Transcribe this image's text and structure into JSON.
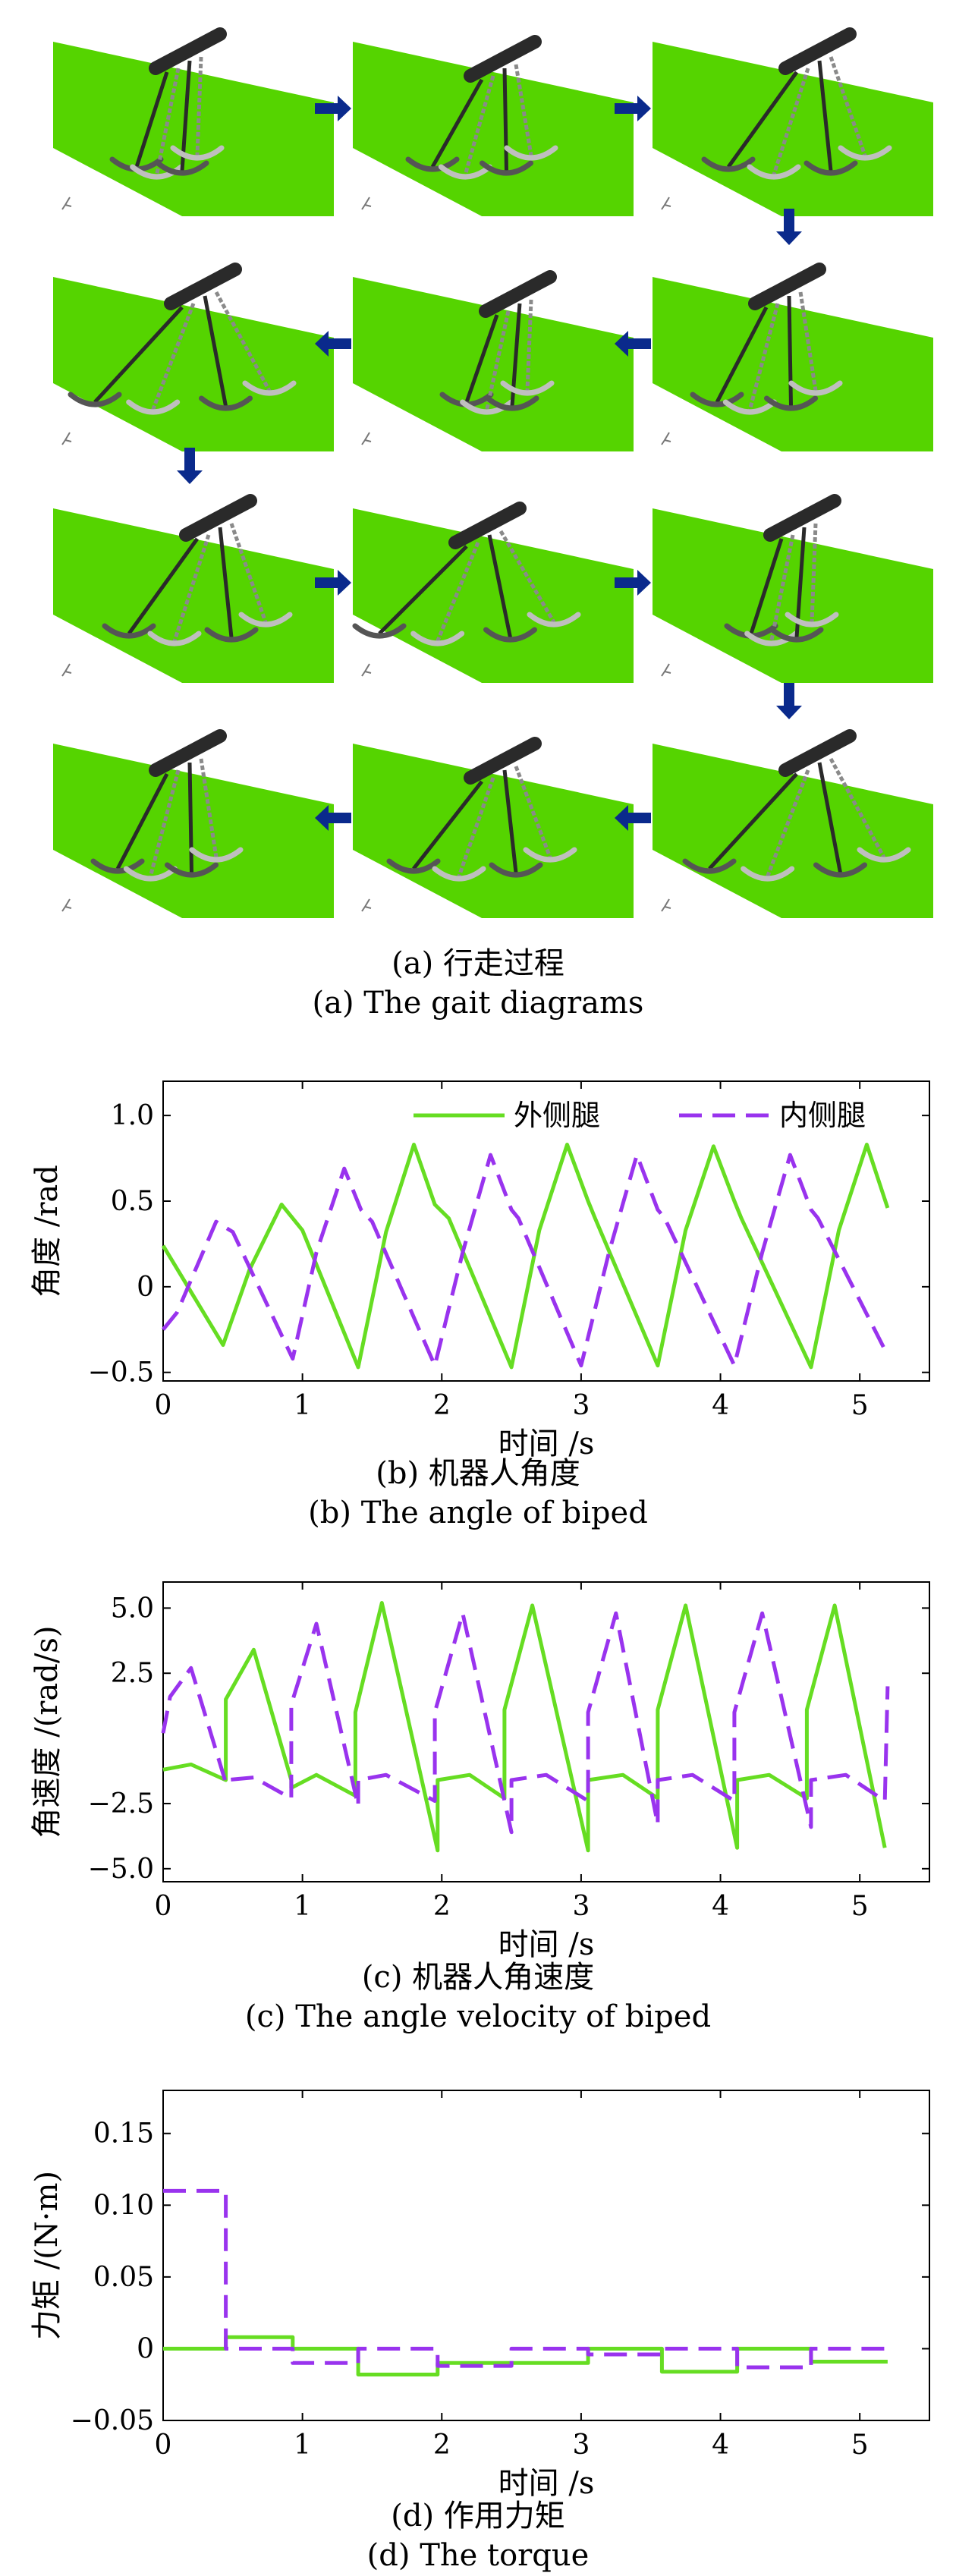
{
  "gait": {
    "caption_zh": "(a) 行走过程",
    "caption_en": "(a) The gait diagrams",
    "scene_color": "#55d400",
    "arrow_color": "#0a2a8c",
    "robot_color": "#2a2a2a"
  },
  "panels": {
    "b": {
      "caption_zh": "(b) 机器人角度",
      "caption_en": "(b) The angle of biped"
    },
    "c": {
      "caption_zh": "(c) 机器人角速度",
      "caption_en": "(c) The angle velocity of biped"
    },
    "d": {
      "caption_zh": "(d) 作用力矩",
      "caption_en": "(d) The torque"
    }
  },
  "chart_data": [
    {
      "type": "line",
      "id": "angle",
      "xlabel": "时间 /s",
      "ylabel": "角度 /rad",
      "xlim": [
        0,
        5.5
      ],
      "ylim": [
        -0.55,
        1.2
      ],
      "xticks": [
        0,
        1,
        2,
        3,
        4,
        5
      ],
      "xtick_labels": [
        "0",
        "1",
        "2",
        "3",
        "4",
        "5"
      ],
      "yticks": [
        -0.5,
        0,
        0.5,
        1.0
      ],
      "ytick_labels": [
        "−0.5",
        "0",
        "0.5",
        "1.0"
      ],
      "legend_position": "top-right",
      "grid": false,
      "series": [
        {
          "name": "外侧腿",
          "color": "#66dd22",
          "dash": "solid",
          "points": [
            [
              0,
              0.24
            ],
            [
              0.43,
              -0.34
            ],
            [
              0.62,
              0.1
            ],
            [
              0.85,
              0.48
            ],
            [
              1.0,
              0.33
            ],
            [
              1.4,
              -0.47
            ],
            [
              1.6,
              0.32
            ],
            [
              1.8,
              0.83
            ],
            [
              1.95,
              0.48
            ],
            [
              2.05,
              0.4
            ],
            [
              2.5,
              -0.47
            ],
            [
              2.7,
              0.33
            ],
            [
              2.9,
              0.83
            ],
            [
              3.05,
              0.5
            ],
            [
              3.1,
              0.4
            ],
            [
              3.55,
              -0.46
            ],
            [
              3.75,
              0.33
            ],
            [
              3.95,
              0.82
            ],
            [
              4.1,
              0.5
            ],
            [
              4.15,
              0.4
            ],
            [
              4.65,
              -0.47
            ],
            [
              4.85,
              0.33
            ],
            [
              5.05,
              0.83
            ],
            [
              5.2,
              0.46
            ]
          ]
        },
        {
          "name": "内侧腿",
          "color": "#9933ee",
          "dash": "dashed",
          "points": [
            [
              0,
              -0.25
            ],
            [
              0.1,
              -0.15
            ],
            [
              0.38,
              0.38
            ],
            [
              0.5,
              0.32
            ],
            [
              0.93,
              -0.42
            ],
            [
              1.1,
              0.2
            ],
            [
              1.3,
              0.69
            ],
            [
              1.42,
              0.45
            ],
            [
              1.5,
              0.38
            ],
            [
              1.95,
              -0.46
            ],
            [
              2.15,
              0.2
            ],
            [
              2.35,
              0.77
            ],
            [
              2.5,
              0.45
            ],
            [
              2.55,
              0.4
            ],
            [
              3.0,
              -0.46
            ],
            [
              3.2,
              0.2
            ],
            [
              3.4,
              0.77
            ],
            [
              3.55,
              0.45
            ],
            [
              3.6,
              0.4
            ],
            [
              4.1,
              -0.46
            ],
            [
              4.3,
              0.2
            ],
            [
              4.5,
              0.77
            ],
            [
              4.65,
              0.45
            ],
            [
              4.7,
              0.4
            ],
            [
              5.2,
              -0.4
            ]
          ]
        }
      ]
    },
    {
      "type": "line",
      "id": "velocity",
      "xlabel": "时间 /s",
      "ylabel": "角速度 /(rad/s)",
      "xlim": [
        0,
        5.5
      ],
      "ylim": [
        -5.5,
        6.0
      ],
      "xticks": [
        0,
        1,
        2,
        3,
        4,
        5
      ],
      "xtick_labels": [
        "0",
        "1",
        "2",
        "3",
        "4",
        "5"
      ],
      "yticks": [
        -5.0,
        -2.5,
        2.5,
        5.0
      ],
      "ytick_labels": [
        "−5.0",
        "−2.5",
        "2.5",
        "5.0"
      ],
      "grid": false,
      "series": [
        {
          "name": "外侧腿",
          "color": "#66dd22",
          "dash": "solid",
          "points": [
            [
              0,
              -1.2
            ],
            [
              0.2,
              -1.0
            ],
            [
              0.45,
              -1.6
            ],
            [
              0.45,
              1.5
            ],
            [
              0.65,
              3.4
            ],
            [
              0.92,
              -1.6
            ],
            [
              0.92,
              -1.9
            ],
            [
              1.1,
              -1.4
            ],
            [
              1.38,
              -2.2
            ],
            [
              1.38,
              1.0
            ],
            [
              1.57,
              5.2
            ],
            [
              1.97,
              -4.3
            ],
            [
              1.97,
              -1.6
            ],
            [
              2.2,
              -1.4
            ],
            [
              2.45,
              -2.3
            ],
            [
              2.45,
              1.1
            ],
            [
              2.65,
              5.1
            ],
            [
              3.05,
              -4.3
            ],
            [
              3.05,
              -1.6
            ],
            [
              3.3,
              -1.4
            ],
            [
              3.55,
              -2.3
            ],
            [
              3.55,
              1.1
            ],
            [
              3.75,
              5.1
            ],
            [
              4.12,
              -4.2
            ],
            [
              4.12,
              -1.6
            ],
            [
              4.35,
              -1.4
            ],
            [
              4.62,
              -2.3
            ],
            [
              4.62,
              1.1
            ],
            [
              4.82,
              5.1
            ],
            [
              5.18,
              -4.2
            ]
          ]
        },
        {
          "name": "内侧腿",
          "color": "#9933ee",
          "dash": "dashed",
          "points": [
            [
              0,
              0.2
            ],
            [
              0.05,
              1.6
            ],
            [
              0.2,
              2.7
            ],
            [
              0.45,
              -1.7
            ],
            [
              0.45,
              -1.6
            ],
            [
              0.65,
              -1.5
            ],
            [
              0.92,
              -2.3
            ],
            [
              0.92,
              1.3
            ],
            [
              1.1,
              4.4
            ],
            [
              1.4,
              -2.6
            ],
            [
              1.4,
              -1.6
            ],
            [
              1.6,
              -1.4
            ],
            [
              1.95,
              -2.4
            ],
            [
              1.95,
              1.0
            ],
            [
              2.15,
              4.8
            ],
            [
              2.5,
              -3.6
            ],
            [
              2.5,
              -1.6
            ],
            [
              2.75,
              -1.4
            ],
            [
              3.05,
              -2.4
            ],
            [
              3.05,
              1.0
            ],
            [
              3.25,
              4.8
            ],
            [
              3.55,
              -3.3
            ],
            [
              3.55,
              -1.6
            ],
            [
              3.8,
              -1.4
            ],
            [
              4.1,
              -2.4
            ],
            [
              4.1,
              1.0
            ],
            [
              4.3,
              4.8
            ],
            [
              4.65,
              -3.4
            ],
            [
              4.65,
              -1.6
            ],
            [
              4.9,
              -1.4
            ],
            [
              5.18,
              -2.4
            ],
            [
              5.2,
              2.0
            ]
          ]
        }
      ]
    },
    {
      "type": "line",
      "id": "torque",
      "xlabel": "时间 /s",
      "ylabel": "力矩 /(N·m)",
      "xlim": [
        0,
        5.5
      ],
      "ylim": [
        -0.05,
        0.18
      ],
      "xticks": [
        0,
        1,
        2,
        3,
        4,
        5
      ],
      "xtick_labels": [
        "0",
        "1",
        "2",
        "3",
        "4",
        "5"
      ],
      "yticks": [
        -0.05,
        0,
        0.05,
        0.1,
        0.15
      ],
      "ytick_labels": [
        "−0.05",
        "0",
        "0.05",
        "0.10",
        "0.15"
      ],
      "grid": false,
      "series": [
        {
          "name": "外侧腿",
          "color": "#66dd22",
          "dash": "solid",
          "points": [
            [
              0,
              0
            ],
            [
              0.45,
              0
            ],
            [
              0.45,
              0.008
            ],
            [
              0.93,
              0.008
            ],
            [
              0.93,
              0
            ],
            [
              1.4,
              0
            ],
            [
              1.4,
              -0.018
            ],
            [
              1.97,
              -0.018
            ],
            [
              1.97,
              -0.01
            ],
            [
              2.5,
              -0.01
            ],
            [
              2.5,
              -0.01
            ],
            [
              3.05,
              -0.01
            ],
            [
              3.05,
              0
            ],
            [
              3.58,
              0
            ],
            [
              3.58,
              -0.016
            ],
            [
              4.12,
              -0.016
            ],
            [
              4.12,
              0
            ],
            [
              4.65,
              0
            ],
            [
              4.65,
              -0.009
            ],
            [
              5.2,
              -0.009
            ]
          ]
        },
        {
          "name": "内侧腿",
          "color": "#9933ee",
          "dash": "dashed",
          "points": [
            [
              0,
              0.11
            ],
            [
              0.45,
              0.11
            ],
            [
              0.45,
              0
            ],
            [
              0.93,
              0
            ],
            [
              0.93,
              -0.01
            ],
            [
              1.4,
              -0.01
            ],
            [
              1.4,
              0
            ],
            [
              1.97,
              0
            ],
            [
              1.97,
              -0.012
            ],
            [
              2.5,
              -0.012
            ],
            [
              2.5,
              0
            ],
            [
              3.05,
              0
            ],
            [
              3.05,
              -0.004
            ],
            [
              3.58,
              -0.004
            ],
            [
              3.58,
              0
            ],
            [
              4.12,
              0
            ],
            [
              4.12,
              -0.013
            ],
            [
              4.65,
              -0.013
            ],
            [
              4.65,
              0
            ],
            [
              5.2,
              0
            ]
          ]
        }
      ]
    }
  ]
}
